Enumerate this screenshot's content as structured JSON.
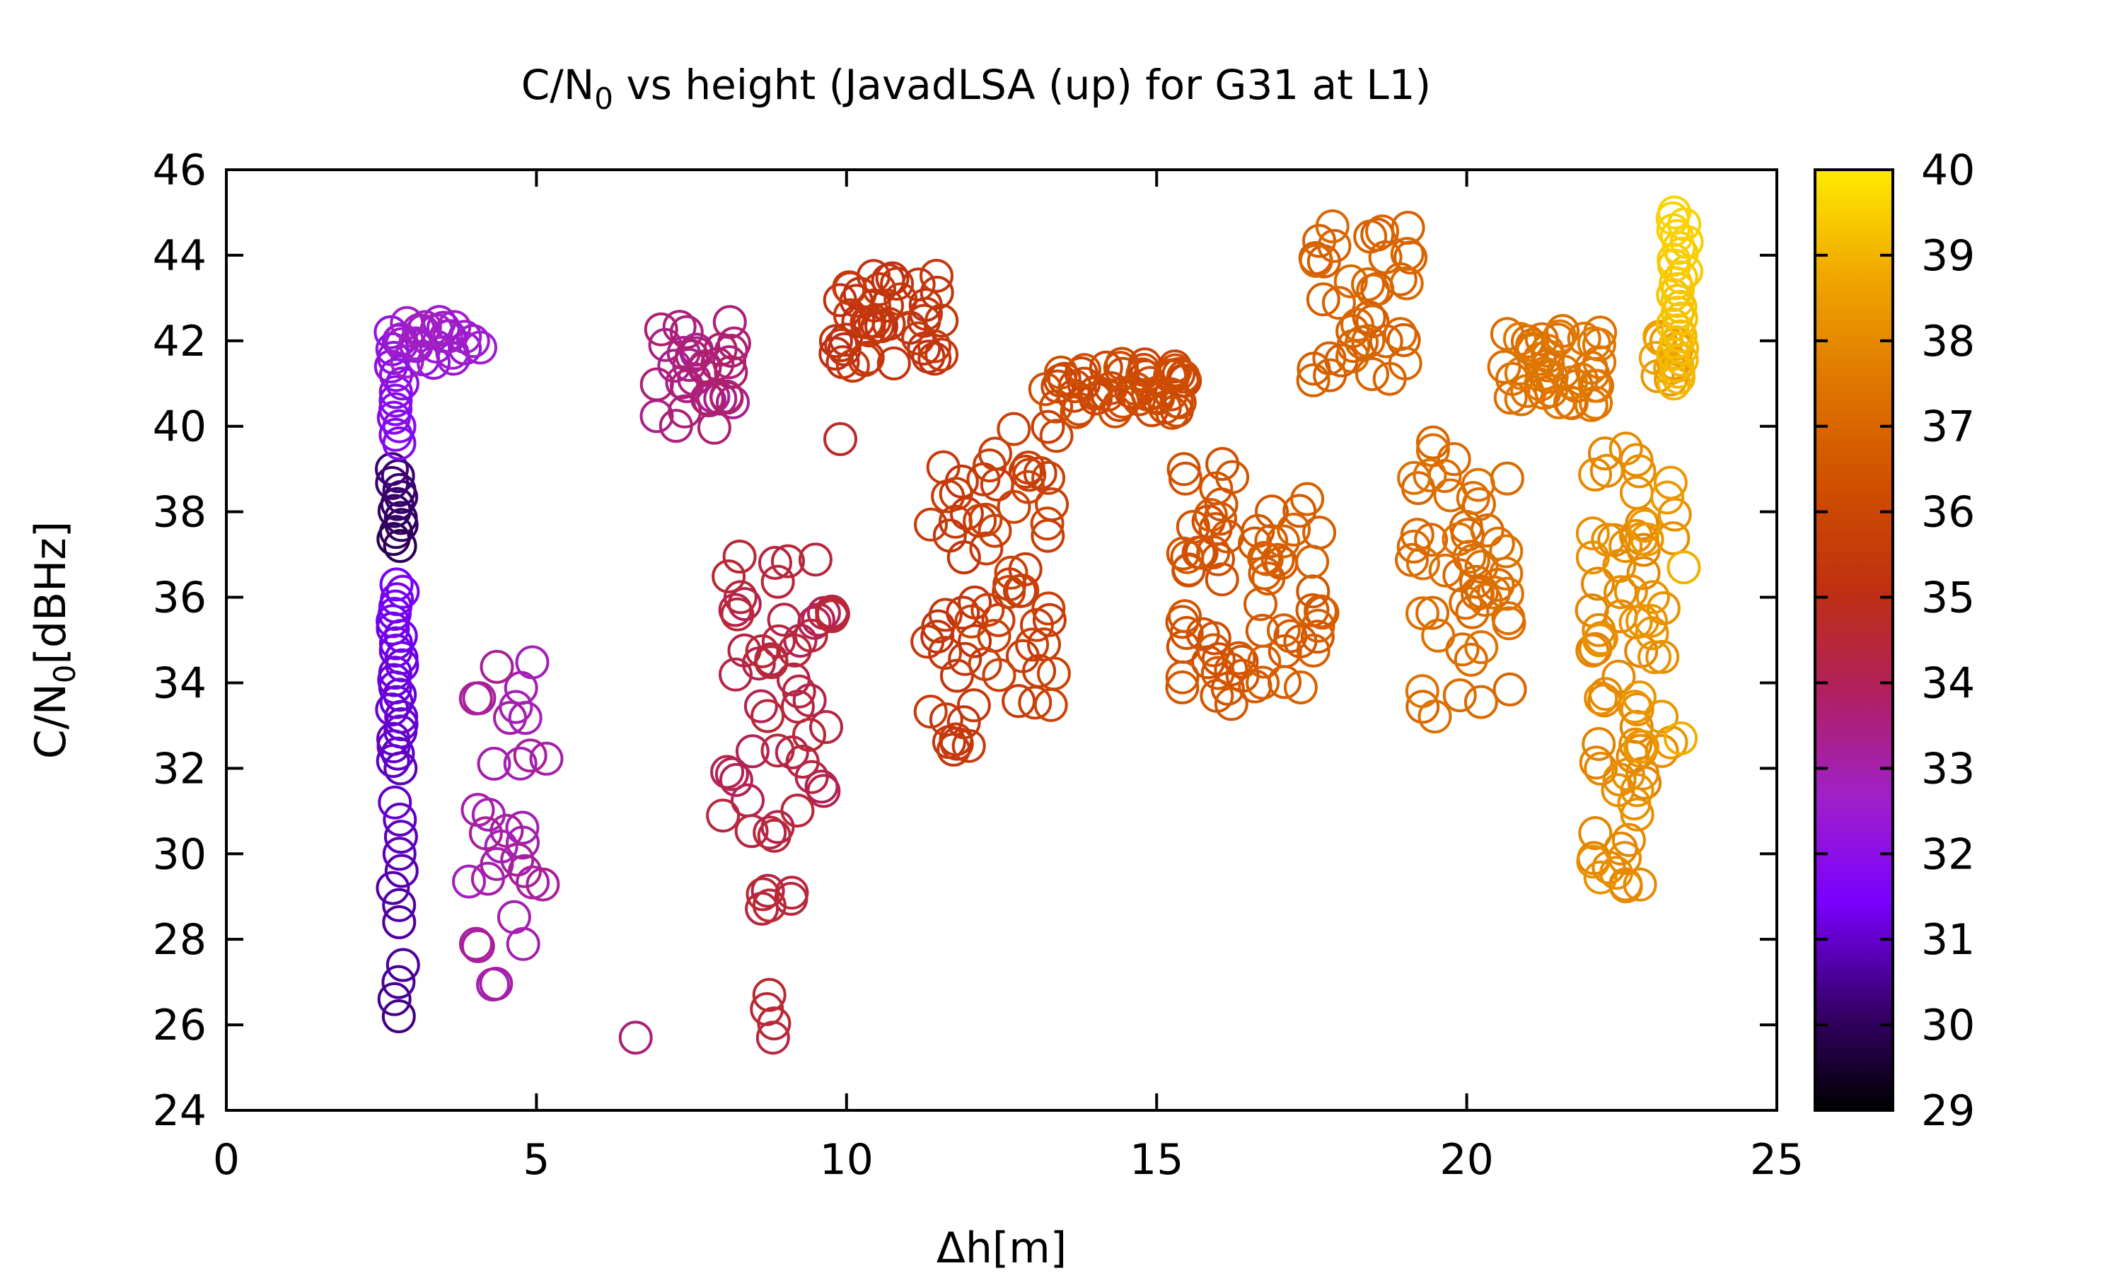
{
  "chart_data": {
    "type": "scatter",
    "title_main": "C/N",
    "title_sub": "0",
    "title_rest": " vs height (JavadLSA (up) for G31 at L1)",
    "xlabel": "Δh[m]",
    "ylabel_main": "C/N",
    "ylabel_sub": "0",
    "ylabel_rest": "[dBHz]",
    "xlim": [
      0,
      25
    ],
    "ylim": [
      24,
      46
    ],
    "xticks": [
      "0",
      "5",
      "10",
      "15",
      "20",
      "25"
    ],
    "yticks": [
      "24",
      "26",
      "28",
      "30",
      "32",
      "34",
      "36",
      "38",
      "40",
      "42",
      "44",
      "46"
    ],
    "colorbar": {
      "range": [
        29,
        40
      ],
      "ticks": [
        "29",
        "30",
        "31",
        "32",
        "33",
        "34",
        "35",
        "36",
        "37",
        "38",
        "39",
        "40"
      ],
      "palette": [
        "#000000",
        "#3a0070",
        "#7a00ff",
        "#a020c8",
        "#b02060",
        "#c03010",
        "#d05000",
        "#e07800",
        "#f0a800",
        "#ffea00"
      ]
    },
    "marker": "open-circle",
    "grid": false,
    "legend": "none",
    "clusters": [
      {
        "x": [
          2.65,
          2.85
        ],
        "y": [
          26.2,
          27.4
        ],
        "n": 4,
        "c": [
          30.4,
          30.6
        ]
      },
      {
        "x": [
          2.65,
          2.85
        ],
        "y": [
          28.4,
          31.2
        ],
        "n": 8,
        "c": [
          30.6,
          31.0
        ]
      },
      {
        "x": [
          2.65,
          2.85
        ],
        "y": [
          32.0,
          36.3
        ],
        "n": 26,
        "c": [
          30.9,
          31.4
        ]
      },
      {
        "x": [
          2.65,
          2.85
        ],
        "y": [
          37.2,
          39.0
        ],
        "n": 12,
        "c": [
          29.9,
          30.3
        ]
      },
      {
        "x": [
          2.65,
          2.85
        ],
        "y": [
          39.6,
          42.2
        ],
        "n": 14,
        "c": [
          31.7,
          32.2
        ]
      },
      {
        "x": [
          2.8,
          4.1
        ],
        "y": [
          41.2,
          42.5
        ],
        "n": 24,
        "c": [
          32.3,
          32.8
        ]
      },
      {
        "x": [
          3.9,
          5.2
        ],
        "y": [
          26.9,
          34.5
        ],
        "n": 32,
        "c": [
          32.8,
          33.3
        ]
      },
      {
        "x": [
          6.6,
          6.6
        ],
        "y": [
          25.7,
          25.7
        ],
        "n": 1,
        "c": [
          33.6,
          33.6
        ]
      },
      {
        "x": [
          6.9,
          8.2
        ],
        "y": [
          39.9,
          42.5
        ],
        "n": 34,
        "c": [
          33.3,
          33.8
        ]
      },
      {
        "x": [
          8.0,
          9.8
        ],
        "y": [
          30.2,
          37.0
        ],
        "n": 52,
        "c": [
          34.0,
          34.6
        ]
      },
      {
        "x": [
          8.6,
          9.2
        ],
        "y": [
          28.7,
          29.3
        ],
        "n": 6,
        "c": [
          34.3,
          34.6
        ]
      },
      {
        "x": [
          8.7,
          8.9
        ],
        "y": [
          25.7,
          26.7
        ],
        "n": 4,
        "c": [
          34.4,
          34.6
        ]
      },
      {
        "x": [
          9.9,
          9.9
        ],
        "y": [
          39.7,
          39.7
        ],
        "n": 1,
        "c": [
          34.7,
          34.7
        ]
      },
      {
        "x": [
          9.8,
          11.6
        ],
        "y": [
          41.4,
          43.6
        ],
        "n": 46,
        "c": [
          35.0,
          35.5
        ]
      },
      {
        "x": [
          11.3,
          12.1
        ],
        "y": [
          32.4,
          39.2
        ],
        "n": 28,
        "c": [
          35.2,
          35.6
        ]
      },
      {
        "x": [
          12.0,
          13.4
        ],
        "y": [
          33.4,
          40.0
        ],
        "n": 44,
        "c": [
          35.5,
          35.9
        ]
      },
      {
        "x": [
          13.2,
          15.5
        ],
        "y": [
          40.3,
          41.5
        ],
        "n": 54,
        "c": [
          35.8,
          36.3
        ]
      },
      {
        "x": [
          15.4,
          16.5
        ],
        "y": [
          33.5,
          39.5
        ],
        "n": 40,
        "c": [
          36.2,
          36.6
        ]
      },
      {
        "x": [
          16.5,
          17.7
        ],
        "y": [
          33.8,
          38.5
        ],
        "n": 34,
        "c": [
          36.5,
          36.9
        ]
      },
      {
        "x": [
          17.5,
          19.1
        ],
        "y": [
          40.9,
          44.8
        ],
        "n": 40,
        "c": [
          36.7,
          37.1
        ]
      },
      {
        "x": [
          19.1,
          20.8
        ],
        "y": [
          33.2,
          39.8
        ],
        "n": 52,
        "c": [
          37.0,
          37.4
        ]
      },
      {
        "x": [
          20.6,
          22.2
        ],
        "y": [
          40.4,
          42.3
        ],
        "n": 44,
        "c": [
          37.2,
          37.6
        ]
      },
      {
        "x": [
          22.0,
          22.9
        ],
        "y": [
          29.2,
          39.8
        ],
        "n": 58,
        "c": [
          37.8,
          38.2
        ]
      },
      {
        "x": [
          22.7,
          23.4
        ],
        "y": [
          32.3,
          38.8
        ],
        "n": 24,
        "c": [
          38.1,
          38.4
        ]
      },
      {
        "x": [
          23.0,
          23.4
        ],
        "y": [
          41.0,
          42.1
        ],
        "n": 12,
        "c": [
          38.3,
          38.6
        ]
      },
      {
        "x": [
          23.3,
          23.55
        ],
        "y": [
          41.0,
          45.0
        ],
        "n": 30,
        "c": [
          39.0,
          39.6
        ]
      },
      {
        "x": [
          23.45,
          23.45
        ],
        "y": [
          32.7,
          32.7
        ],
        "n": 1,
        "c": [
          38.9,
          38.9
        ]
      },
      {
        "x": [
          23.5,
          23.5
        ],
        "y": [
          36.7,
          36.7
        ],
        "n": 1,
        "c": [
          38.9,
          38.9
        ]
      }
    ]
  }
}
